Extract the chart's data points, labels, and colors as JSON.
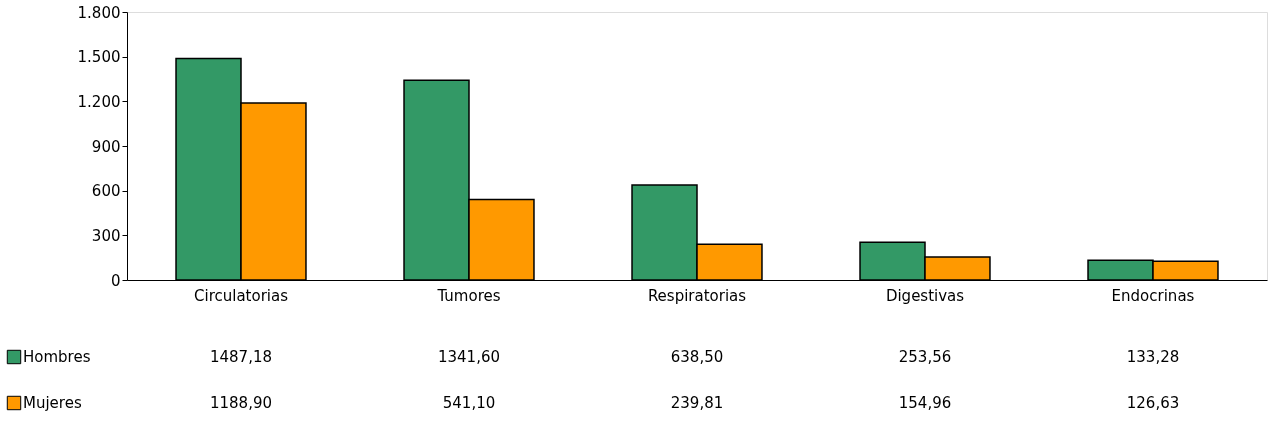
{
  "chart_data": {
    "type": "bar",
    "categories": [
      "Circulatorias",
      "Tumores",
      "Respiratorias",
      "Digestivas",
      "Endocrinas"
    ],
    "series": [
      {
        "name": "Hombres",
        "color": "#339966",
        "values": [
          1487.18,
          1341.6,
          638.5,
          253.56,
          133.28
        ],
        "value_labels": [
          "1487,18",
          "1341,60",
          "638,50",
          "253,56",
          "133,28"
        ]
      },
      {
        "name": "Mujeres",
        "color": "#ff9900",
        "values": [
          1188.9,
          541.1,
          239.81,
          154.96,
          126.63
        ],
        "value_labels": [
          "1188,90",
          "541,10",
          "239,81",
          "154,96",
          "126,63"
        ]
      }
    ],
    "ylim": [
      0,
      1800
    ],
    "yticks": [
      0,
      300,
      600,
      900,
      {
        "value": 1200,
        "label": "1.200"
      },
      {
        "value": 1500,
        "label": "1.500"
      },
      {
        "value": 1800,
        "label": "1.800"
      }
    ],
    "grid": false,
    "legend": "bottom left"
  }
}
